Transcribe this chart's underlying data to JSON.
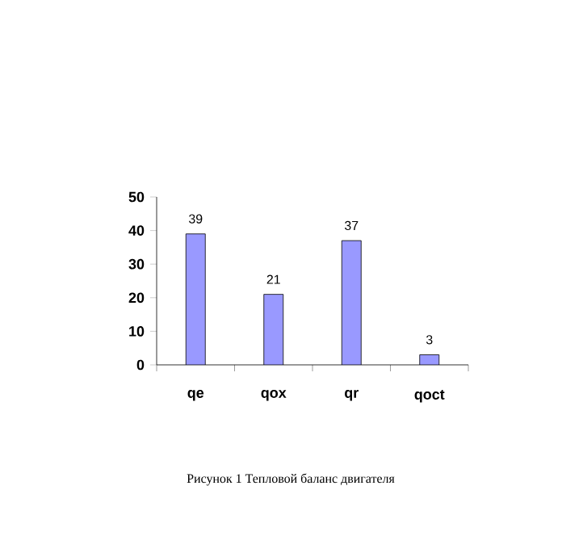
{
  "chart_data": {
    "type": "bar",
    "categories": [
      "qe",
      "qox",
      "qr",
      "qoct"
    ],
    "values": [
      39,
      21,
      37,
      3
    ],
    "color": "#9999ff",
    "ylim": [
      0,
      50
    ],
    "yticks": [
      0,
      10,
      20,
      30,
      40,
      50
    ],
    "data_labels": true,
    "grid": false,
    "annotations": [
      "Рисунок 1 Тепловой баланс двигателя"
    ]
  }
}
